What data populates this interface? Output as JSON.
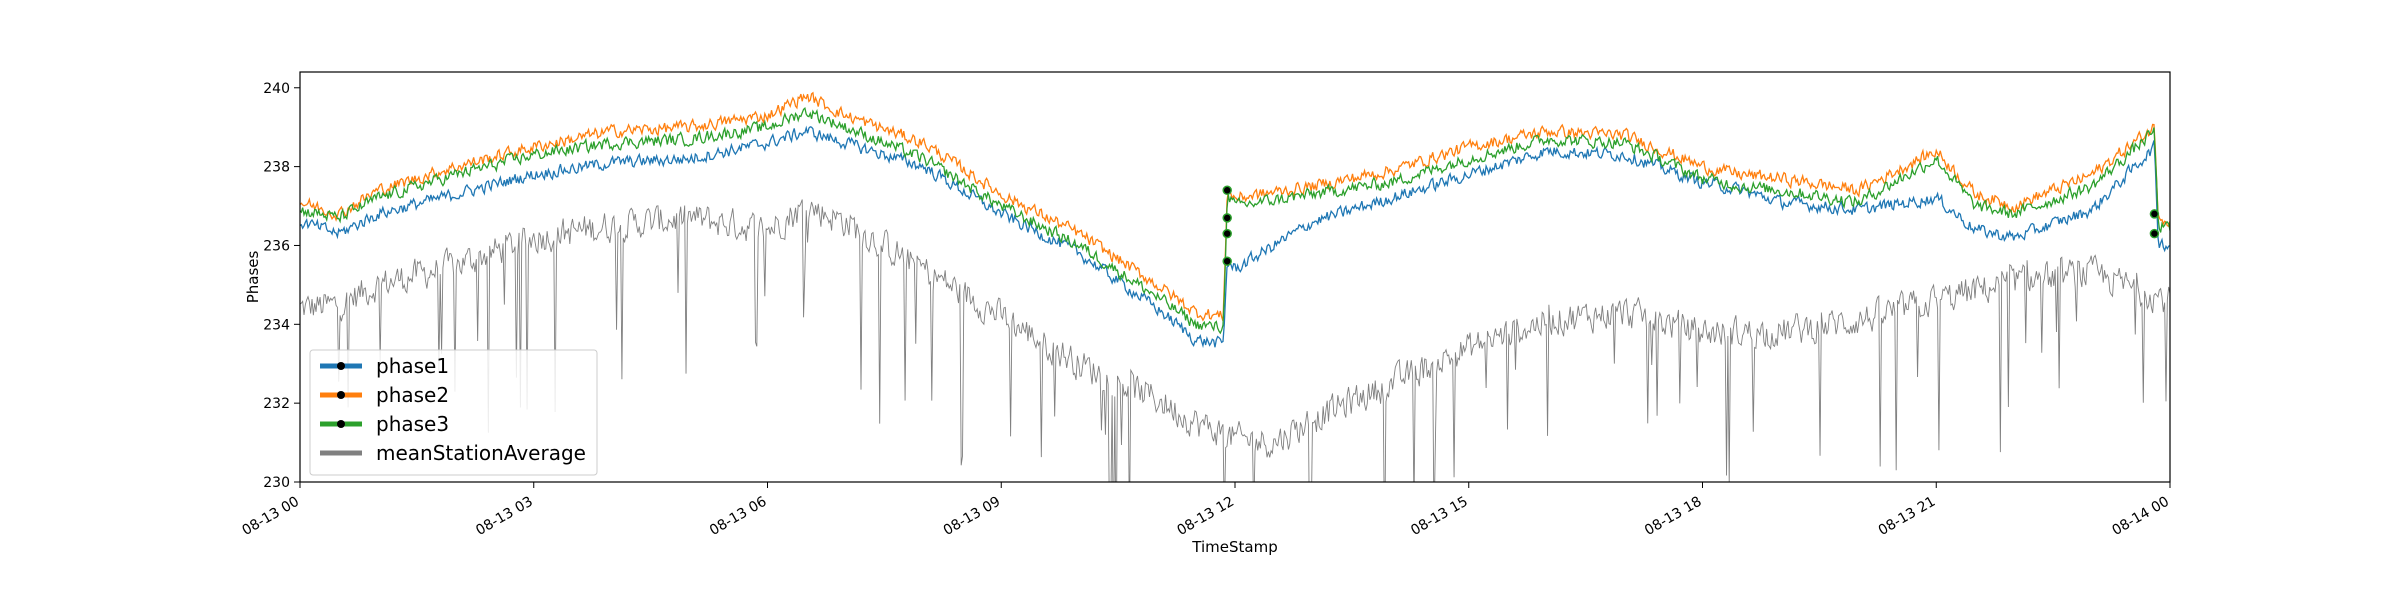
{
  "chart_data": {
    "type": "line",
    "xlabel": "TimeStamp",
    "ylabel": "Phases",
    "x_range_hours": [
      0,
      24
    ],
    "ylim": [
      230,
      240.4
    ],
    "grid": false,
    "legend_placement": "lower-left",
    "x_ticks": [
      {
        "hour": 0,
        "label": "08-13 00"
      },
      {
        "hour": 3,
        "label": "08-13 03"
      },
      {
        "hour": 6,
        "label": "08-13 06"
      },
      {
        "hour": 9,
        "label": "08-13 09"
      },
      {
        "hour": 12,
        "label": "08-13 12"
      },
      {
        "hour": 15,
        "label": "08-13 15"
      },
      {
        "hour": 18,
        "label": "08-13 18"
      },
      {
        "hour": 21,
        "label": "08-13 21"
      },
      {
        "hour": 24,
        "label": "08-14 00"
      }
    ],
    "y_ticks": [
      230,
      232,
      234,
      236,
      238,
      240
    ],
    "series": [
      {
        "name": "phase1",
        "color": "#1f77b4",
        "noise": 0.22,
        "points": [
          [
            0,
            236.6
          ],
          [
            0.5,
            236.3
          ],
          [
            1,
            236.8
          ],
          [
            2,
            237.3
          ],
          [
            3,
            237.8
          ],
          [
            4,
            238.1
          ],
          [
            5,
            238.2
          ],
          [
            6,
            238.6
          ],
          [
            6.5,
            238.9
          ],
          [
            7,
            238.6
          ],
          [
            8,
            238.0
          ],
          [
            9,
            236.8
          ],
          [
            10,
            235.8
          ],
          [
            11,
            234.4
          ],
          [
            11.5,
            233.6
          ],
          [
            11.85,
            233.5
          ],
          [
            11.9,
            235.6
          ],
          [
            12,
            235.4
          ],
          [
            13,
            236.6
          ],
          [
            14,
            237.2
          ],
          [
            15,
            237.8
          ],
          [
            16,
            238.4
          ],
          [
            17,
            238.3
          ],
          [
            18,
            237.6
          ],
          [
            18.5,
            237.4
          ],
          [
            19,
            237.1
          ],
          [
            20,
            236.9
          ],
          [
            21,
            237.2
          ],
          [
            21.5,
            236.4
          ],
          [
            22,
            236.2
          ],
          [
            23,
            236.9
          ],
          [
            23.8,
            238.5
          ],
          [
            23.85,
            236.1
          ],
          [
            24,
            236.0
          ]
        ]
      },
      {
        "name": "phase2",
        "color": "#ff7f0e",
        "noise": 0.22,
        "points": [
          [
            0,
            237.1
          ],
          [
            0.5,
            236.8
          ],
          [
            1,
            237.4
          ],
          [
            2,
            238.0
          ],
          [
            3,
            238.5
          ],
          [
            4,
            238.9
          ],
          [
            5,
            239.0
          ],
          [
            6,
            239.3
          ],
          [
            6.5,
            239.8
          ],
          [
            7,
            239.3
          ],
          [
            8,
            238.6
          ],
          [
            9,
            237.3
          ],
          [
            10,
            236.3
          ],
          [
            11,
            235.0
          ],
          [
            11.5,
            234.3
          ],
          [
            11.85,
            234.2
          ],
          [
            11.9,
            237.4
          ],
          [
            12,
            237.2
          ],
          [
            13,
            237.5
          ],
          [
            14,
            237.9
          ],
          [
            15,
            238.5
          ],
          [
            16,
            238.9
          ],
          [
            17,
            238.8
          ],
          [
            18,
            238.0
          ],
          [
            18.5,
            237.8
          ],
          [
            19,
            237.7
          ],
          [
            20,
            237.4
          ],
          [
            21,
            238.4
          ],
          [
            21.5,
            237.3
          ],
          [
            22,
            237.0
          ],
          [
            23,
            237.8
          ],
          [
            23.8,
            239.0
          ],
          [
            23.85,
            236.8
          ],
          [
            24,
            236.6
          ]
        ]
      },
      {
        "name": "phase3",
        "color": "#2ca02c",
        "noise": 0.22,
        "points": [
          [
            0,
            236.9
          ],
          [
            0.5,
            236.7
          ],
          [
            1,
            237.2
          ],
          [
            2,
            237.8
          ],
          [
            3,
            238.3
          ],
          [
            4,
            238.6
          ],
          [
            5,
            238.7
          ],
          [
            6,
            239.0
          ],
          [
            6.5,
            239.4
          ],
          [
            7,
            239.0
          ],
          [
            8,
            238.2
          ],
          [
            9,
            237.0
          ],
          [
            10,
            236.0
          ],
          [
            11,
            234.7
          ],
          [
            11.5,
            234.0
          ],
          [
            11.85,
            233.9
          ],
          [
            11.9,
            237.3
          ],
          [
            12,
            237.0
          ],
          [
            13,
            237.3
          ],
          [
            14,
            237.6
          ],
          [
            15,
            238.2
          ],
          [
            16,
            238.7
          ],
          [
            17,
            238.6
          ],
          [
            18,
            237.7
          ],
          [
            18.5,
            237.5
          ],
          [
            19,
            237.4
          ],
          [
            20,
            237.1
          ],
          [
            21,
            238.2
          ],
          [
            21.5,
            237.0
          ],
          [
            22,
            236.8
          ],
          [
            23,
            237.5
          ],
          [
            23.8,
            238.9
          ],
          [
            23.85,
            236.5
          ],
          [
            24,
            236.4
          ]
        ]
      },
      {
        "name": "meanStationAverage",
        "color": "#808080",
        "noise": 0.55,
        "points": [
          [
            0,
            234.4
          ],
          [
            0.5,
            234.5
          ],
          [
            1,
            235.0
          ],
          [
            2,
            235.5
          ],
          [
            3,
            236.2
          ],
          [
            4,
            236.5
          ],
          [
            5,
            236.7
          ],
          [
            6,
            236.4
          ],
          [
            6.5,
            237.0
          ],
          [
            7,
            236.6
          ],
          [
            8,
            235.4
          ],
          [
            9,
            234.2
          ],
          [
            10,
            233.0
          ],
          [
            11,
            232.1
          ],
          [
            11.5,
            231.5
          ],
          [
            12,
            231.1
          ],
          [
            12.5,
            231.0
          ],
          [
            13,
            231.6
          ],
          [
            14,
            232.5
          ],
          [
            15,
            233.4
          ],
          [
            16,
            234.1
          ],
          [
            17,
            234.3
          ],
          [
            18,
            233.8
          ],
          [
            19,
            233.8
          ],
          [
            20,
            234.1
          ],
          [
            21,
            234.6
          ],
          [
            22,
            235.1
          ],
          [
            23,
            235.3
          ],
          [
            24,
            234.6
          ]
        ]
      }
    ],
    "markers": [
      {
        "hour": 11.9,
        "value": 235.6
      },
      {
        "hour": 11.9,
        "value": 236.3
      },
      {
        "hour": 11.9,
        "value": 236.7
      },
      {
        "hour": 11.9,
        "value": 237.4
      },
      {
        "hour": 23.8,
        "value": 236.3
      },
      {
        "hour": 23.8,
        "value": 236.8
      }
    ]
  }
}
